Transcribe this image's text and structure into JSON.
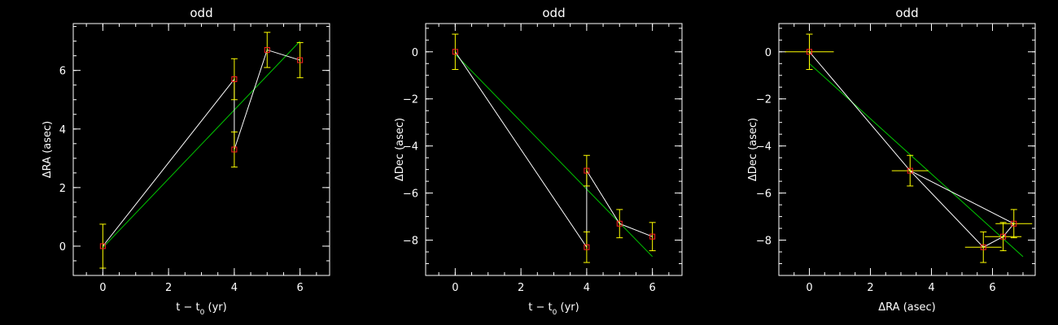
{
  "chart_data": [
    {
      "type": "scatter",
      "title": "odd",
      "xlabel": "t − t",
      "xlabel_sub": "0",
      "xlabel_unit": " (yr)",
      "ylabel": "ΔRA (asec)",
      "xlim": [
        -0.9,
        6.9
      ],
      "ylim": [
        -1.0,
        7.6
      ],
      "xticks": [
        0,
        2,
        4,
        6
      ],
      "yticks": [
        0,
        2,
        4,
        6
      ],
      "x_minor_step": 0.5,
      "y_minor_step": 0.5,
      "points": [
        {
          "x": 0,
          "y": 0.0,
          "yerr": 0.75
        },
        {
          "x": 4,
          "y": 5.7,
          "yerr": 0.7
        },
        {
          "x": 4,
          "y": 3.3,
          "yerr": 0.6
        },
        {
          "x": 5,
          "y": 6.7,
          "yerr": 0.6
        },
        {
          "x": 6,
          "y": 6.35,
          "yerr": 0.6
        }
      ],
      "connect_order": [
        0,
        1,
        2,
        3,
        4
      ],
      "fit_line": {
        "x": [
          0,
          6
        ],
        "y": [
          -0.05,
          7.0
        ]
      },
      "colors": {
        "marker": "#ff2020",
        "errorbar": "#ffff00",
        "connector": "#ffffff",
        "fit": "#00c800",
        "axes": "#ffffff"
      }
    },
    {
      "type": "scatter",
      "title": "odd",
      "xlabel": "t − t",
      "xlabel_sub": "0",
      "xlabel_unit": " (yr)",
      "ylabel": "ΔDec (asec)",
      "xlim": [
        -0.9,
        6.9
      ],
      "ylim": [
        -9.5,
        1.2
      ],
      "xticks": [
        0,
        2,
        4,
        6
      ],
      "yticks": [
        0,
        -2,
        -4,
        -6,
        -8
      ],
      "x_minor_step": 0.5,
      "y_minor_step": 0.5,
      "points": [
        {
          "x": 0,
          "y": 0.0,
          "yerr": 0.75
        },
        {
          "x": 4,
          "y": -8.3,
          "yerr": 0.65
        },
        {
          "x": 4,
          "y": -5.05,
          "yerr": 0.65
        },
        {
          "x": 5,
          "y": -7.3,
          "yerr": 0.6
        },
        {
          "x": 6,
          "y": -7.85,
          "yerr": 0.6
        }
      ],
      "connect_order": [
        0,
        1,
        2,
        3,
        4
      ],
      "fit_line": {
        "x": [
          0,
          6
        ],
        "y": [
          -0.1,
          -8.7
        ]
      },
      "colors": {
        "marker": "#ff2020",
        "errorbar": "#ffff00",
        "connector": "#ffffff",
        "fit": "#00c800",
        "axes": "#ffffff"
      }
    },
    {
      "type": "scatter",
      "title": "odd",
      "xlabel": "ΔRA (asec)",
      "xlabel_sub": "",
      "xlabel_unit": "",
      "ylabel": "ΔDec (asec)",
      "xlim": [
        -1.0,
        7.4
      ],
      "ylim": [
        -9.5,
        1.2
      ],
      "xticks": [
        0,
        2,
        4,
        6
      ],
      "yticks": [
        0,
        -2,
        -4,
        -6,
        -8
      ],
      "x_minor_step": 0.5,
      "y_minor_step": 0.5,
      "points": [
        {
          "x": 0.0,
          "y": 0.0,
          "xerr": 0.8,
          "yerr": 0.75
        },
        {
          "x": 3.3,
          "y": -5.05,
          "xerr": 0.6,
          "yerr": 0.65
        },
        {
          "x": 5.7,
          "y": -8.3,
          "xerr": 0.6,
          "yerr": 0.65
        },
        {
          "x": 6.35,
          "y": -7.85,
          "xerr": 0.6,
          "yerr": 0.6
        },
        {
          "x": 6.7,
          "y": -7.3,
          "xerr": 0.6,
          "yerr": 0.6
        }
      ],
      "connect_order": [
        0,
        1,
        2,
        3,
        4,
        1
      ],
      "fit_line": {
        "x": [
          0,
          7.0
        ],
        "y": [
          -0.5,
          -8.7
        ]
      },
      "colors": {
        "marker": "#ff2020",
        "errorbar": "#ffff00",
        "connector": "#ffffff",
        "fit": "#00c800",
        "axes": "#ffffff"
      }
    }
  ]
}
